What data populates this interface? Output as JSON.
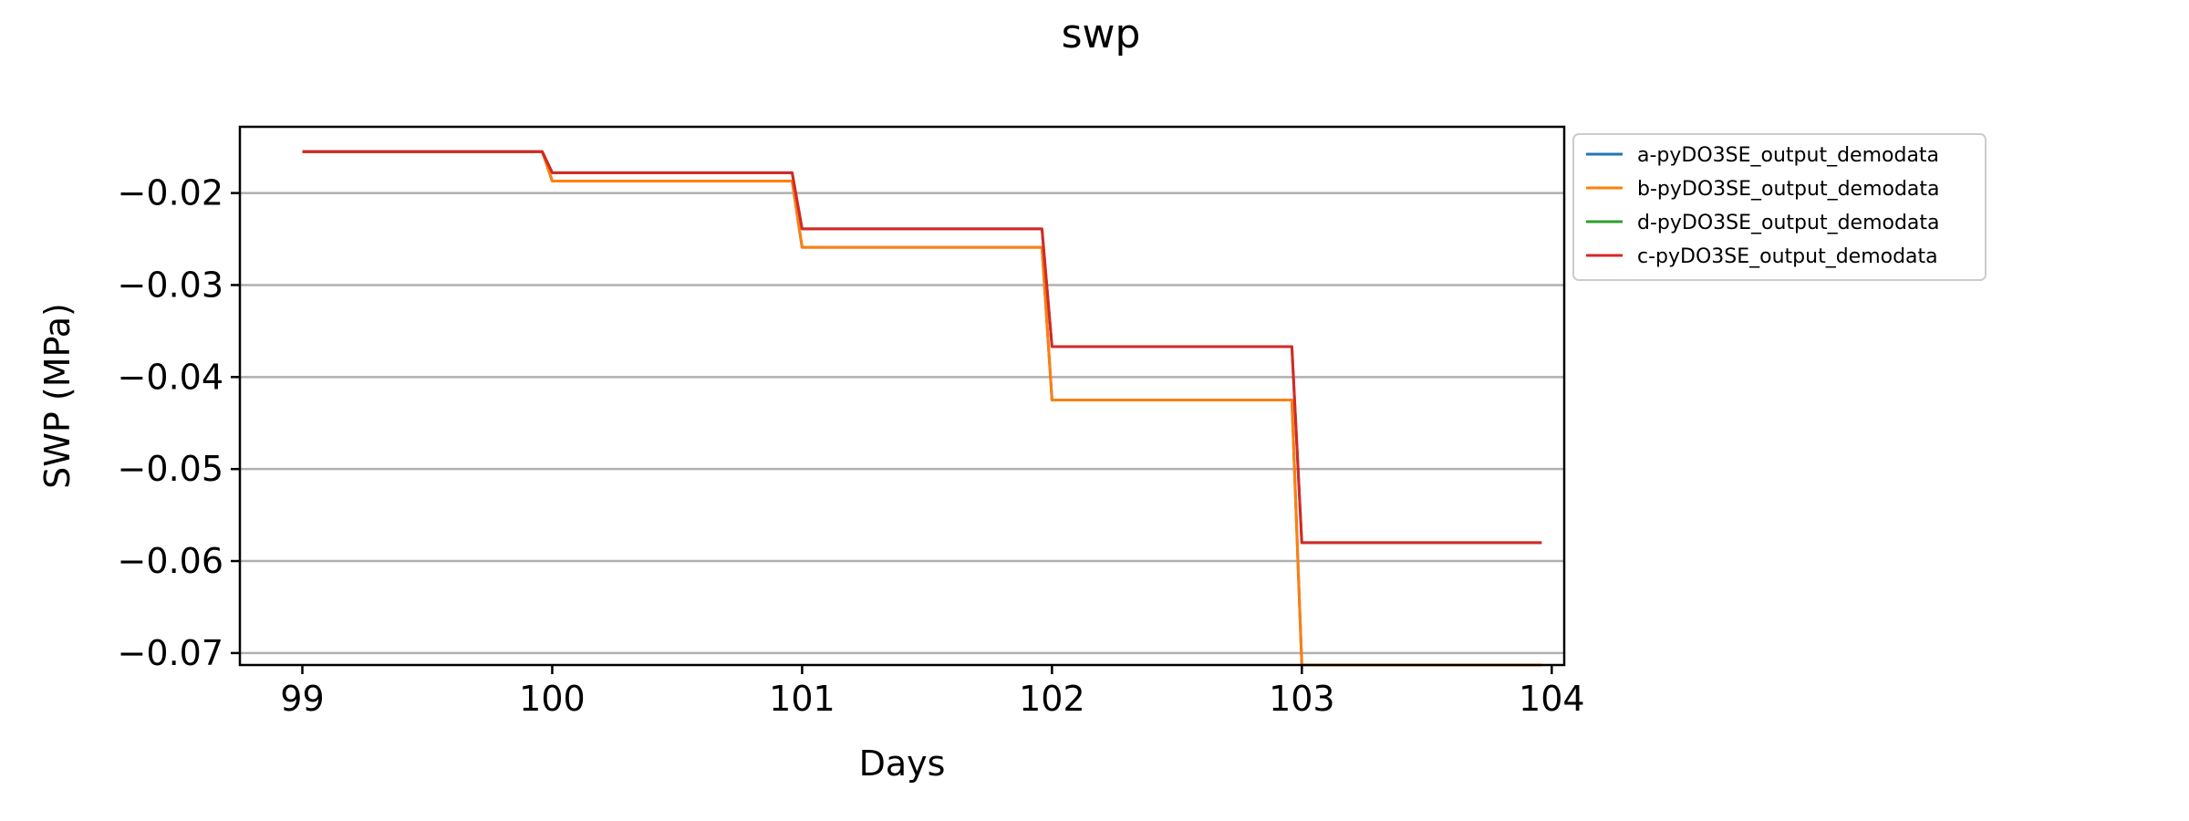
{
  "chart_data": {
    "type": "line",
    "title": "swp",
    "xlabel": "Days",
    "ylabel": "SWP (MPa)",
    "xlim": [
      98.75,
      104.05
    ],
    "ylim": [
      -0.0713,
      -0.0128
    ],
    "x_ticks": [
      99,
      100,
      101,
      102,
      103,
      104
    ],
    "x_tick_labels": [
      "99",
      "100",
      "101",
      "102",
      "103",
      "104"
    ],
    "y_ticks": [
      -0.02,
      -0.03,
      -0.04,
      -0.05,
      -0.06,
      -0.07
    ],
    "y_tick_labels": [
      "−0.02",
      "−0.03",
      "−0.04",
      "−0.05",
      "−0.06",
      "−0.07"
    ],
    "grid": "horizontal",
    "legend_position": "outside-right",
    "series": [
      {
        "name": "a-pyDO3SE_output_demodata",
        "color": "#1f77b4",
        "x": [
          99,
          99.96,
          100.0,
          100.96,
          101.0,
          101.96,
          102.0,
          102.96,
          103.0,
          103.96
        ],
        "y": [
          -0.0155,
          -0.0155,
          -0.0187,
          -0.0187,
          -0.0259,
          -0.0259,
          -0.0425,
          -0.0425,
          -0.0713,
          -0.0713
        ]
      },
      {
        "name": "b-pyDO3SE_output_demodata",
        "color": "#ff7f0e",
        "x": [
          99,
          99.96,
          100.0,
          100.96,
          101.0,
          101.96,
          102.0,
          102.96,
          103.0,
          103.96
        ],
        "y": [
          -0.0155,
          -0.0155,
          -0.0187,
          -0.0187,
          -0.0259,
          -0.0259,
          -0.0425,
          -0.0425,
          -0.0713,
          -0.0713
        ]
      },
      {
        "name": "d-pyDO3SE_output_demodata",
        "color": "#2ca02c",
        "x": [
          99,
          99.96,
          100.0,
          100.96,
          101.0,
          101.96,
          102.0,
          102.96,
          103.0,
          103.96
        ],
        "y": [
          -0.0155,
          -0.0155,
          -0.0178,
          -0.0178,
          -0.0239,
          -0.0239,
          -0.0367,
          -0.0367,
          -0.058,
          -0.058
        ]
      },
      {
        "name": "c-pyDO3SE_output_demodata",
        "color": "#d62728",
        "x": [
          99,
          99.96,
          100.0,
          100.96,
          101.0,
          101.96,
          102.0,
          102.96,
          103.0,
          103.96
        ],
        "y": [
          -0.0155,
          -0.0155,
          -0.0178,
          -0.0178,
          -0.0239,
          -0.0239,
          -0.0367,
          -0.0367,
          -0.058,
          -0.058
        ]
      }
    ]
  }
}
